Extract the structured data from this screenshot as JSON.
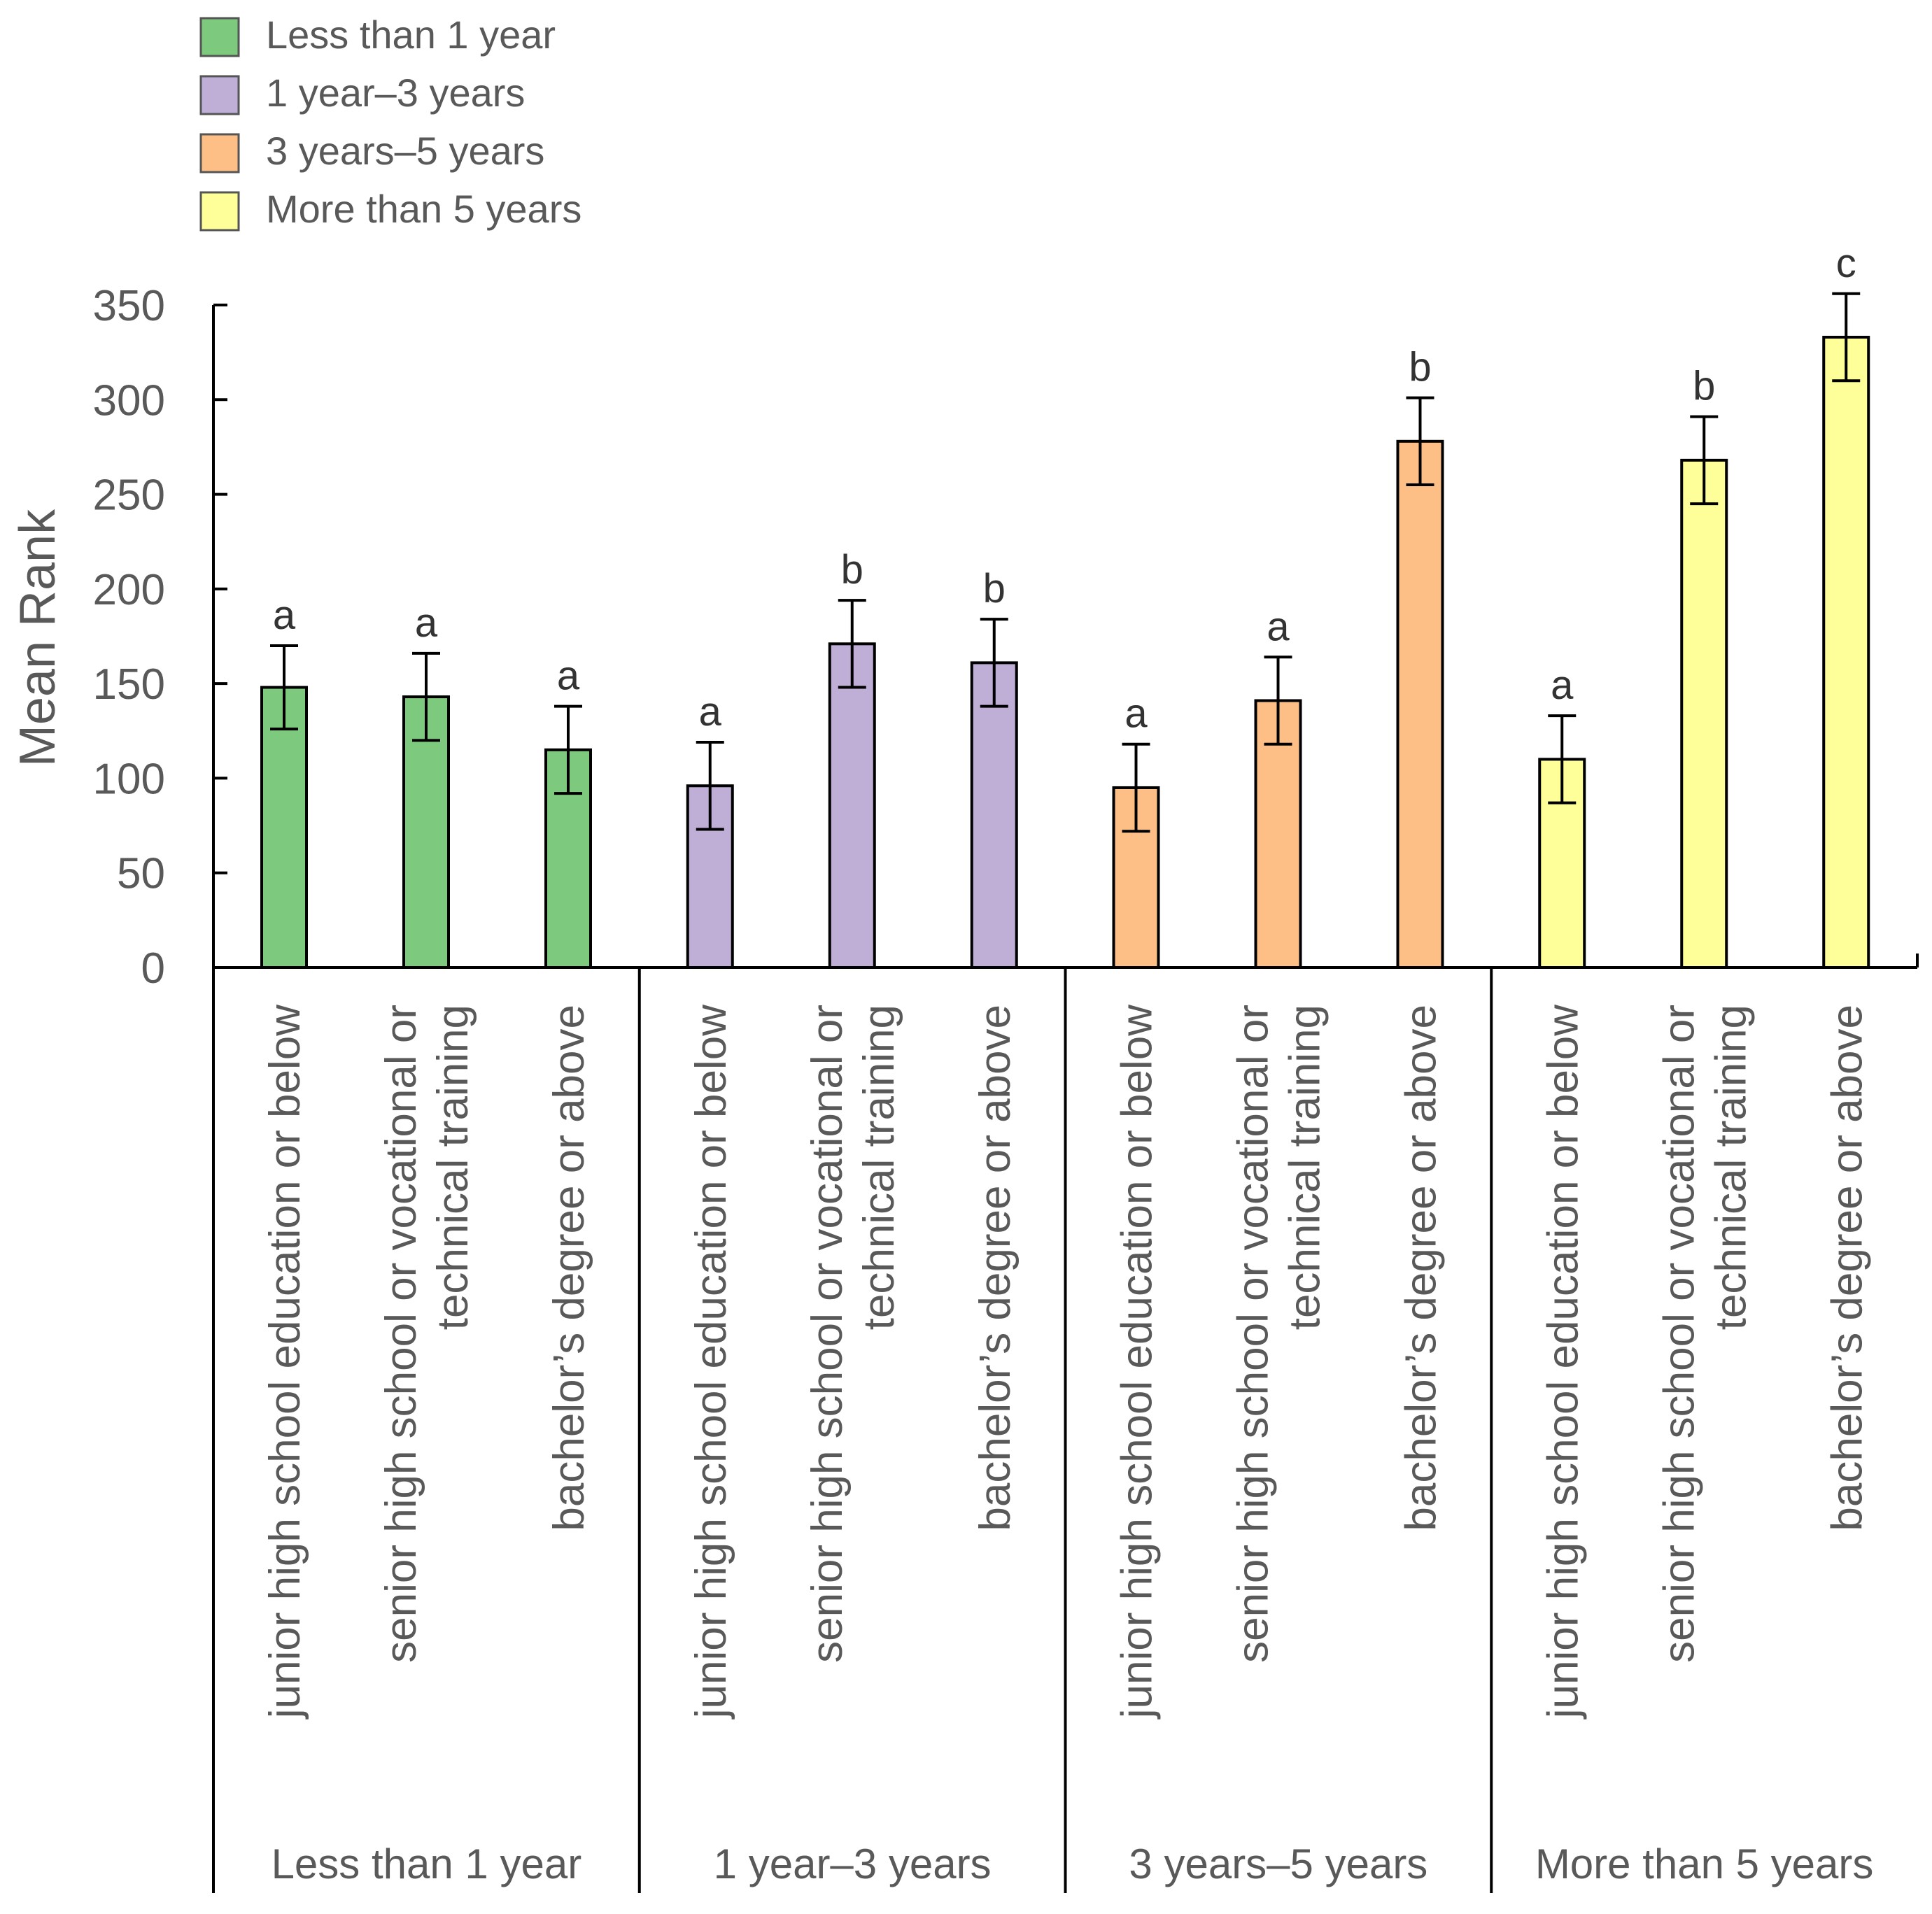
{
  "chart_data": {
    "type": "bar",
    "title": "",
    "ylabel": "Mean Rank",
    "xlabel": "",
    "ylim": [
      0,
      350
    ],
    "yticks": [
      0,
      50,
      100,
      150,
      200,
      250,
      300,
      350
    ],
    "legend": {
      "placement": "top-left",
      "entries": [
        {
          "label": "Less than 1 year",
          "color": "#7dc97d"
        },
        {
          "label": "1 year–3 years",
          "color": "#bfaed6"
        },
        {
          "label": "3 years–5 years",
          "color": "#fdbf85"
        },
        {
          "label": "More than 5 years",
          "color": "#ffff99"
        }
      ]
    },
    "groups": [
      {
        "label": "Less than 1 year",
        "color": "#7dc97d",
        "bars": [
          {
            "category": [
              "junior high school education or below"
            ],
            "value": 148,
            "error": 22,
            "letter": "a"
          },
          {
            "category": [
              "senior high school or vocational or",
              "technical training"
            ],
            "value": 143,
            "error": 23,
            "letter": "a"
          },
          {
            "category": [
              "bachelor’s degree or above"
            ],
            "value": 115,
            "error": 23,
            "letter": "a"
          }
        ]
      },
      {
        "label": "1 year–3 years",
        "color": "#bfaed6",
        "bars": [
          {
            "category": [
              "junior high school education or below"
            ],
            "value": 96,
            "error": 23,
            "letter": "a"
          },
          {
            "category": [
              "senior high school or vocational or",
              "technical training"
            ],
            "value": 171,
            "error": 23,
            "letter": "b"
          },
          {
            "category": [
              "bachelor’s degree or above"
            ],
            "value": 161,
            "error": 23,
            "letter": "b"
          }
        ]
      },
      {
        "label": "3 years–5 years",
        "color": "#fdbf85",
        "bars": [
          {
            "category": [
              "junior high school education or below"
            ],
            "value": 95,
            "error": 23,
            "letter": "a"
          },
          {
            "category": [
              "senior high school or vocational or",
              "technical training"
            ],
            "value": 141,
            "error": 23,
            "letter": "a"
          },
          {
            "category": [
              "bachelor’s degree or above"
            ],
            "value": 278,
            "error": 23,
            "letter": "b"
          }
        ]
      },
      {
        "label": "More than 5 years",
        "color": "#ffff99",
        "bars": [
          {
            "category": [
              "junior high school education or below"
            ],
            "value": 110,
            "error": 23,
            "letter": "a"
          },
          {
            "category": [
              "senior high school or vocational or",
              "technical training"
            ],
            "value": 268,
            "error": 23,
            "letter": "b"
          },
          {
            "category": [
              "bachelor’s degree or above"
            ],
            "value": 333,
            "error": 23,
            "letter": "c"
          }
        ]
      }
    ]
  }
}
